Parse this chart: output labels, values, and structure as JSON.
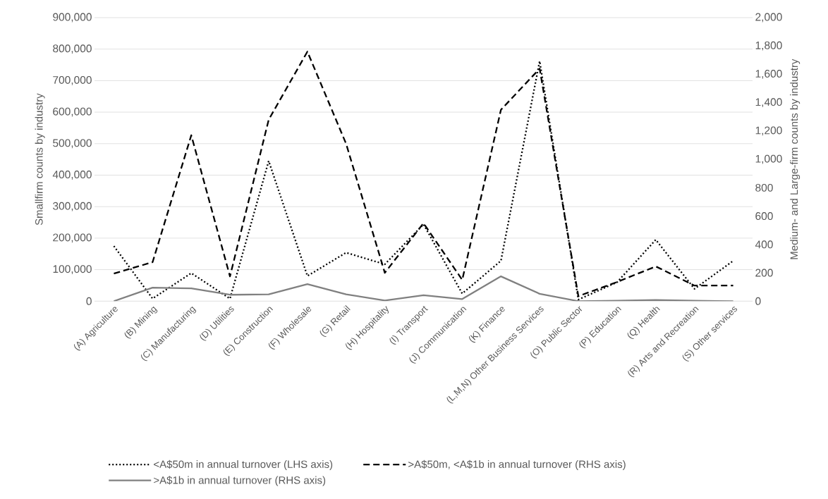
{
  "chart_data": {
    "type": "line",
    "categories": [
      "(A) Agriculture",
      "(B) Mining",
      "(C) Manufacturing",
      "(D) Utilities",
      "(E) Construction",
      "(F) Wholesale",
      "(G) Retail",
      "(H) Hospitality",
      "(I) Transport",
      "(J) Communication",
      "(K) Finance",
      "(L,M,N) Other Business Services",
      "(O) Public Sector",
      "(P) Education",
      "(Q) Health",
      "(R) Arts and Recreation",
      "(S) Other services"
    ],
    "ylabel": "Smallfirm counts by industry",
    "y2label": "Medium- and Large-firm counts by industry",
    "ylim": [
      0,
      900000
    ],
    "yticks": [
      0,
      {
        "value": 100000,
        "label": "100,000"
      },
      {
        "value": 200000,
        "label": "200,000"
      },
      {
        "value": 300000,
        "label": "300,000"
      },
      {
        "value": 400000,
        "label": "400,000"
      },
      {
        "value": 500000,
        "label": "500,000"
      },
      {
        "value": 600000,
        "label": "600,000"
      },
      {
        "value": 700000,
        "label": "700,000"
      },
      {
        "value": 800000,
        "label": "800,000"
      },
      {
        "value": 900000,
        "label": "900,000"
      }
    ],
    "y2lim": [
      0,
      2000
    ],
    "y2ticks": [
      0,
      200,
      400,
      600,
      800,
      {
        "value": 1000,
        "label": "1,000"
      },
      {
        "value": 1200,
        "label": "1,200"
      },
      {
        "value": 1400,
        "label": "1,400"
      },
      {
        "value": 1600,
        "label": "1,600"
      },
      {
        "value": 1800,
        "label": "1,800"
      },
      {
        "value": 2000,
        "label": "2,000"
      }
    ],
    "grid": "y",
    "legend": "bottom",
    "series": [
      {
        "name": "<A$50m in annual turnover (LHS axis)",
        "color": "#000000",
        "line_style": "dotted",
        "values": [
          175000,
          8000,
          89000,
          8000,
          445000,
          80000,
          154000,
          117000,
          244000,
          24000,
          128000,
          762000,
          5000,
          60000,
          195000,
          39000,
          128000
        ]
      },
      {
        "name": ">A$50m, <A$1b in annual turnover (RHS axis)",
        "color": "#000000",
        "line_style": "dashed",
        "axis": "y2",
        "values": [
          195,
          275,
          1170,
          175,
          1280,
          1760,
          1110,
          200,
          550,
          150,
          1350,
          1640,
          35,
          135,
          245,
          110,
          110
        ]
      },
      {
        "name": ">A$1b in annual turnover (RHS axis)",
        "color": "#808080",
        "line_style": "solid",
        "axis": "y2",
        "values": [
          0,
          95,
          90,
          45,
          48,
          120,
          48,
          5,
          42,
          15,
          175,
          52,
          0,
          3,
          8,
          3,
          0
        ]
      }
    ]
  }
}
